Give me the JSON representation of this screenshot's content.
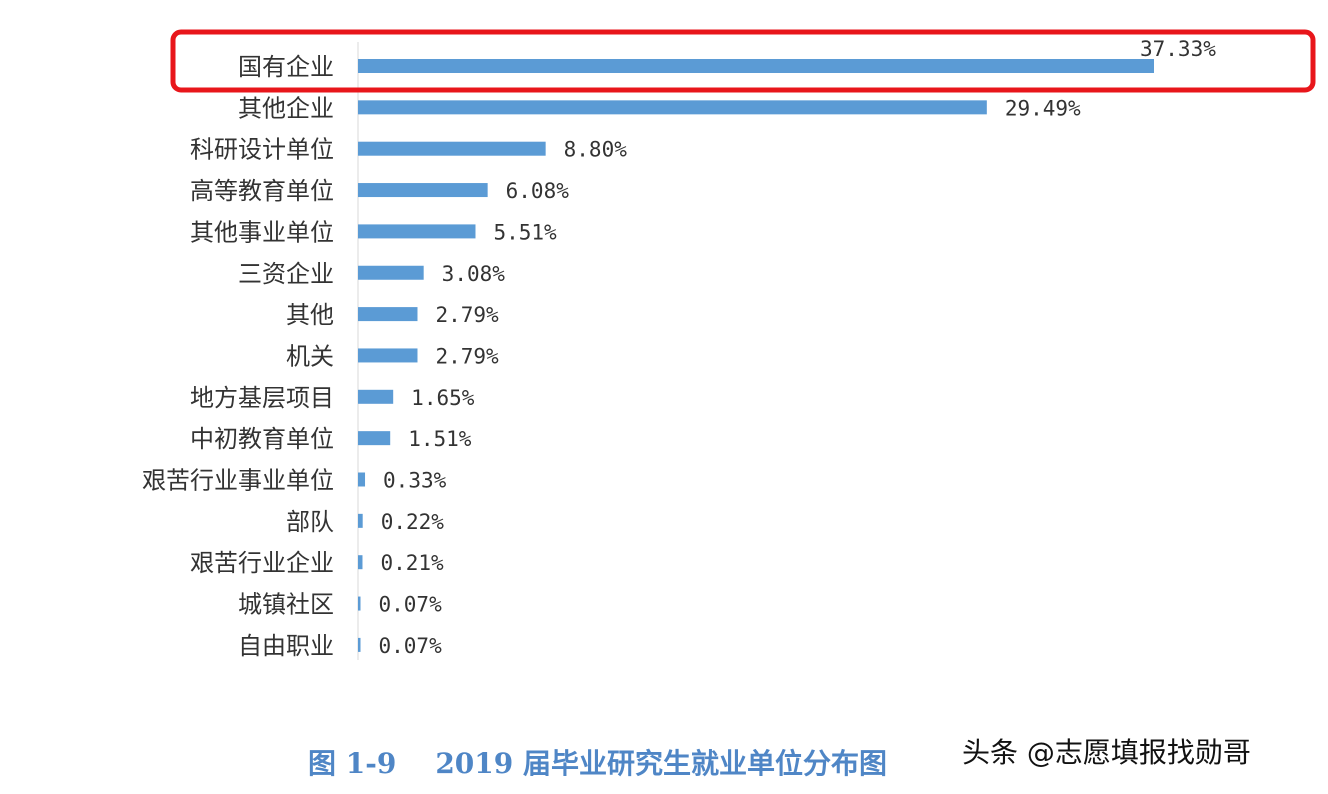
{
  "chart_data": {
    "type": "bar",
    "orientation": "horizontal",
    "categories": [
      "国有企业",
      "其他企业",
      "科研设计单位",
      "高等教育单位",
      "其他事业单位",
      "三资企业",
      "其他",
      "机关",
      "地方基层项目",
      "中初教育单位",
      "艰苦行业事业单位",
      "部队",
      "艰苦行业企业",
      "城镇社区",
      "自由职业"
    ],
    "values": [
      37.33,
      29.49,
      8.8,
      6.08,
      5.51,
      3.08,
      2.79,
      2.79,
      1.65,
      1.51,
      0.33,
      0.22,
      0.21,
      0.07,
      0.07
    ],
    "data_labels": [
      "37.33%",
      "29.49%",
      "8.80%",
      "6.08%",
      "5.51%",
      "3.08%",
      "2.79%",
      "2.79%",
      "1.65%",
      "1.51%",
      "0.33%",
      "0.22%",
      "0.21%",
      "0.07%",
      "0.07%"
    ],
    "unit": "%",
    "title": "图 1-9    2019 届毕业研究生就业单位分布图",
    "xlabel": "",
    "ylabel": "",
    "xlim": [
      0,
      40
    ],
    "grid": false,
    "bar_color": "#5b9bd5",
    "highlight": {
      "category": "国有企业",
      "color": "#e8161b"
    }
  },
  "watermark": "头条 @志愿填报找勋哥"
}
